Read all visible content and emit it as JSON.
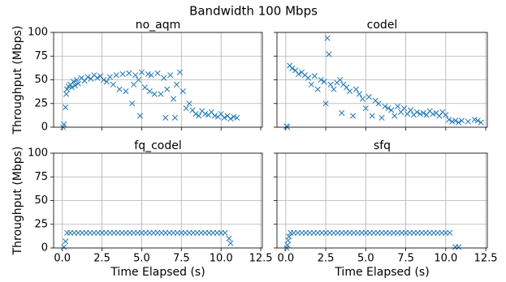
{
  "title": "Bandwidth 100 Mbps",
  "chart_data": [
    {
      "type": "scatter",
      "title": "no_aqm",
      "ylabel": "Throughput (Mbps)",
      "color": "#1f77b4",
      "grid": true,
      "show_xticklabels": false,
      "show_yticklabels": true,
      "xlim": [
        -0.55,
        12.6
      ],
      "ylim": [
        0,
        100
      ],
      "xticks": [
        0,
        2.5,
        5,
        7.5,
        10,
        12.5
      ],
      "yticks": [
        0,
        25,
        50,
        75,
        100
      ],
      "x": [
        0.05,
        0.1,
        0.2,
        0.25,
        0.3,
        0.4,
        0.5,
        0.6,
        0.7,
        0.8,
        0.9,
        1.0,
        1.2,
        1.4,
        1.6,
        1.8,
        2.0,
        2.2,
        2.4,
        2.6,
        2.8,
        3.0,
        3.2,
        3.4,
        3.6,
        3.8,
        4.0,
        4.2,
        4.4,
        4.5,
        4.6,
        4.8,
        4.9,
        5.0,
        5.2,
        5.4,
        5.5,
        5.6,
        5.8,
        6.0,
        6.2,
        6.4,
        6.5,
        6.6,
        6.8,
        7.0,
        7.1,
        7.2,
        7.4,
        7.6,
        7.8,
        8.0,
        8.2,
        8.4,
        8.6,
        8.8,
        9.0,
        9.2,
        9.4,
        9.6,
        9.8,
        10.0,
        10.2,
        10.4,
        10.6,
        10.8,
        11.0
      ],
      "values": [
        0,
        3,
        21,
        35,
        40,
        43,
        45,
        42,
        48,
        44,
        50,
        46,
        52,
        49,
        53,
        51,
        55,
        52,
        54,
        50,
        48,
        53,
        45,
        55,
        40,
        56,
        38,
        57,
        25,
        45,
        55,
        50,
        12,
        58,
        42,
        56,
        38,
        55,
        35,
        57,
        35,
        52,
        10,
        40,
        55,
        30,
        10,
        45,
        58,
        38,
        20,
        25,
        18,
        14,
        12,
        17,
        14,
        13,
        16,
        12,
        11,
        14,
        10,
        12,
        9,
        11,
        10
      ]
    },
    {
      "type": "scatter",
      "title": "codel",
      "color": "#1f77b4",
      "grid": true,
      "show_xticklabels": false,
      "show_yticklabels": false,
      "xlim": [
        -0.55,
        12.6
      ],
      "ylim": [
        0,
        100
      ],
      "xticks": [
        0,
        2.5,
        5,
        7.5,
        10,
        12.5
      ],
      "yticks": [
        0,
        25,
        50,
        75,
        100
      ],
      "x": [
        0.05,
        0.1,
        0.25,
        0.4,
        0.6,
        0.8,
        1.0,
        1.2,
        1.4,
        1.6,
        1.8,
        2.0,
        2.2,
        2.4,
        2.5,
        2.6,
        2.7,
        2.8,
        3.0,
        3.2,
        3.4,
        3.5,
        3.6,
        3.8,
        4.0,
        4.2,
        4.4,
        4.6,
        4.8,
        5.0,
        5.2,
        5.4,
        5.6,
        5.8,
        6.0,
        6.2,
        6.4,
        6.6,
        6.8,
        7.0,
        7.2,
        7.4,
        7.6,
        7.8,
        8.0,
        8.2,
        8.4,
        8.6,
        8.8,
        9.0,
        9.2,
        9.4,
        9.6,
        9.8,
        10.0,
        10.2,
        10.4,
        10.6,
        10.8,
        11.0,
        11.4,
        11.8,
        12.0,
        12.2
      ],
      "values": [
        1,
        0,
        65,
        62,
        60,
        56,
        58,
        55,
        52,
        45,
        54,
        40,
        50,
        48,
        25,
        94,
        77,
        45,
        40,
        47,
        50,
        15,
        45,
        42,
        38,
        12,
        40,
        35,
        30,
        20,
        32,
        12,
        28,
        25,
        10,
        22,
        20,
        18,
        12,
        22,
        16,
        20,
        14,
        18,
        13,
        16,
        14,
        15,
        13,
        17,
        14,
        15,
        12,
        16,
        13,
        8,
        6,
        7,
        5,
        7,
        6,
        8,
        7,
        5
      ]
    },
    {
      "type": "scatter",
      "title": "fq_codel",
      "ylabel": "Throughput (Mbps)",
      "xlabel": "Time Elapsed (s)",
      "color": "#1f77b4",
      "grid": true,
      "show_xticklabels": true,
      "show_yticklabels": true,
      "xlim": [
        -0.55,
        12.6
      ],
      "ylim": [
        0,
        100
      ],
      "xticks": [
        {
          "value": 0,
          "label": "0.0"
        },
        2.5,
        {
          "value": 5,
          "label": "5.0"
        },
        7.5,
        {
          "value": 10,
          "label": "10.0"
        },
        12.5
      ],
      "yticks": [
        0,
        25,
        50,
        75,
        100
      ],
      "x": [
        0.1,
        0.2,
        0.3,
        0.5,
        0.75,
        1.0,
        1.25,
        1.5,
        1.75,
        2.0,
        2.25,
        2.5,
        2.75,
        3.0,
        3.25,
        3.5,
        3.75,
        4.0,
        4.25,
        4.5,
        4.75,
        5.0,
        5.25,
        5.5,
        5.75,
        6.0,
        6.25,
        6.5,
        6.75,
        7.0,
        7.25,
        7.5,
        7.75,
        8.0,
        8.25,
        8.5,
        8.75,
        9.0,
        9.25,
        9.5,
        9.75,
        10.0,
        10.25,
        10.5,
        10.6
      ],
      "values": [
        1,
        7,
        16,
        16,
        16,
        16,
        16,
        16,
        16,
        16,
        16,
        16,
        16,
        16,
        16,
        16,
        16,
        16,
        16,
        16,
        16,
        16,
        16,
        16,
        16,
        16,
        16,
        16,
        16,
        16,
        16,
        16,
        16,
        16,
        16,
        16,
        16,
        16,
        16,
        16,
        16,
        16,
        16,
        10,
        5
      ]
    },
    {
      "type": "scatter",
      "title": "sfq",
      "xlabel": "Time Elapsed (s)",
      "color": "#1f77b4",
      "grid": true,
      "show_xticklabels": true,
      "show_yticklabels": false,
      "xlim": [
        -0.55,
        12.6
      ],
      "ylim": [
        0,
        100
      ],
      "xticks": [
        {
          "value": 0,
          "label": "0.0"
        },
        2.5,
        {
          "value": 5,
          "label": "5.0"
        },
        7.5,
        {
          "value": 10,
          "label": "10.0"
        },
        12.5
      ],
      "yticks": [
        0,
        25,
        50,
        75,
        100
      ],
      "x": [
        0.05,
        0.1,
        0.15,
        0.2,
        0.3,
        0.5,
        0.75,
        1.0,
        1.25,
        1.5,
        1.75,
        2.0,
        2.25,
        2.5,
        2.75,
        3.0,
        3.25,
        3.5,
        3.75,
        4.0,
        4.25,
        4.5,
        4.75,
        5.0,
        5.25,
        5.5,
        5.75,
        6.0,
        6.25,
        6.5,
        6.75,
        7.0,
        7.25,
        7.5,
        7.75,
        8.0,
        8.25,
        8.5,
        8.75,
        9.0,
        9.25,
        9.5,
        9.75,
        10.0,
        10.25,
        10.6,
        10.8
      ],
      "values": [
        0,
        3,
        8,
        12,
        16,
        16,
        16,
        16,
        16,
        16,
        16,
        16,
        16,
        16,
        16,
        16,
        16,
        16,
        16,
        16,
        16,
        16,
        16,
        16,
        16,
        16,
        16,
        16,
        16,
        16,
        16,
        16,
        16,
        16,
        16,
        16,
        16,
        16,
        16,
        16,
        16,
        16,
        16,
        16,
        16,
        1,
        1
      ]
    }
  ]
}
